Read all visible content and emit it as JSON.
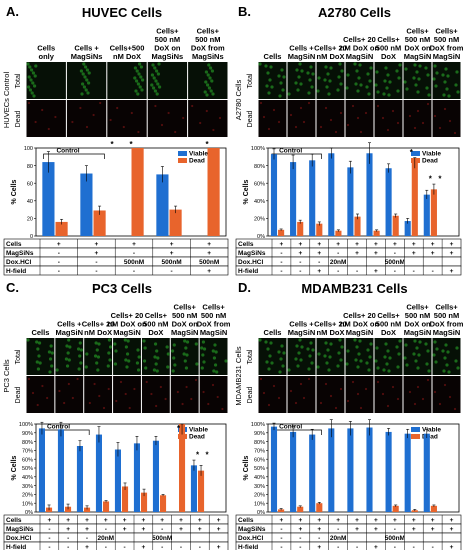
{
  "colors": {
    "viable": "#1f6fd1",
    "dead": "#e8642c",
    "micro_live": "#1f7a1f",
    "micro_dead": "#5a1010"
  },
  "panels": [
    {
      "letter": "A.",
      "title": "HUVEC Cells",
      "side_label": "HUVECs Control",
      "row_labels": [
        "Total",
        "Dead"
      ],
      "conditions": [
        "Cells only",
        "Cells + MagSiNs",
        "Cells+500 nM DoX",
        "Cells+ 500 nM DoX on MagSiNs",
        "Cells+ 500 nM DoX from MagSiNs"
      ],
      "table": {
        "rows": [
          {
            "label": "Cells",
            "cells": [
              "+",
              "+",
              "+",
              "+",
              "+"
            ]
          },
          {
            "label": "MagSiNs",
            "cells": [
              "-",
              "+",
              "-",
              "+",
              "+"
            ]
          },
          {
            "label": "Dox.HCl",
            "cells": [
              "-",
              "-",
              "500nM",
              "500nM",
              "500nM"
            ]
          },
          {
            "label": "H-field",
            "cells": [
              "-",
              "-",
              "-",
              "-",
              "+"
            ]
          }
        ]
      },
      "legend": [
        "Viable",
        "Dead"
      ],
      "control_label": "Control",
      "ylabel": "% Cells",
      "yticks": [
        "0",
        "20",
        "40",
        "60",
        "80",
        "100"
      ]
    },
    {
      "letter": "B.",
      "title": "A2780 Cells",
      "side_label": "A2780 Cells",
      "row_labels": [
        "Total",
        "Dead"
      ],
      "conditions": [
        "Cells",
        "Cells + MagSiN",
        "Cells+ 20 nM DoX",
        "Cells+ 20 nM DoX on MagSiN",
        "Cells+ 500 nM DoX",
        "Cells+ 500 nM DoX on MagSiN",
        "Cells+ 500 nM DoX from MagSiN"
      ],
      "table": {
        "rows": [
          {
            "label": "Cells",
            "cells": [
              "+",
              "+",
              "+",
              "+",
              "+",
              "+",
              "+",
              "+",
              "+",
              "+"
            ]
          },
          {
            "label": "MagSiNs",
            "cells": [
              "-",
              "+",
              "+",
              "-",
              "+",
              "+",
              "-",
              "+",
              "+",
              "+"
            ]
          },
          {
            "label": "Dox.HCl",
            "cells": [
              "-",
              "-",
              "-",
              "20nM",
              "",
              "",
              "500nM",
              "",
              "",
              ""
            ]
          },
          {
            "label": "H-field",
            "cells": [
              "-",
              "-",
              "+",
              "-",
              "-",
              "+",
              "-",
              "-",
              "-",
              "+"
            ]
          }
        ]
      },
      "legend": [
        "Viable",
        "Dead"
      ],
      "control_label": "Control",
      "ylabel": "% Cells",
      "yticks": [
        "0%",
        "20%",
        "40%",
        "60%",
        "80%",
        "100%"
      ]
    },
    {
      "letter": "C.",
      "title": "PC3 Cells",
      "side_label": "PC3 Cells",
      "row_labels": [
        "Total",
        "Dead"
      ],
      "conditions": [
        "Cells",
        "Cells + MagSiN",
        "Cells+ 20 nM DoX",
        "Cells+ 20 nM DoX on MagSiN",
        "Cells+ 500 nM DoX",
        "Cells+ 500 nM DoX on MagSiN",
        "Cells+ 500 nM DoX from MagSiN"
      ],
      "table": {
        "rows": [
          {
            "label": "Cells",
            "cells": [
              "+",
              "+",
              "+",
              "+",
              "+",
              "+",
              "+",
              "+",
              "+",
              "+"
            ]
          },
          {
            "label": "MagSiNs",
            "cells": [
              "-",
              "+",
              "+",
              "-",
              "+",
              "+",
              "-",
              "+",
              "+",
              "+"
            ]
          },
          {
            "label": "Dox.HCl",
            "cells": [
              "-",
              "-",
              "-",
              "20nM",
              "",
              "",
              "500nM",
              "",
              "",
              ""
            ]
          },
          {
            "label": "H-field",
            "cells": [
              "-",
              "-",
              "+",
              "-",
              "-",
              "+",
              "-",
              "-",
              "-",
              "+"
            ]
          }
        ]
      },
      "legend": [
        "Viable",
        "Dead"
      ],
      "control_label": "Control",
      "ylabel": "% Cells",
      "yticks": [
        "0%",
        "10%",
        "20%",
        "30%",
        "40%",
        "50%",
        "60%",
        "70%",
        "80%",
        "90%",
        "100%"
      ]
    },
    {
      "letter": "D.",
      "title": "MDAMB231 Cells",
      "side_label": "MDAMB231 Cells",
      "row_labels": [
        "Total",
        "Dead"
      ],
      "conditions": [
        "Cells",
        "Cells + MagSiN",
        "Cells+ 20 nM DoX",
        "Cells+ 20 nM DoX on MagSiN",
        "Cells+ 500 nM DoX",
        "Cells+ 500 nM DoX on MagSiN",
        "Cells+ 500 nM DoX from MagSiN"
      ],
      "table": {
        "rows": [
          {
            "label": "Cells",
            "cells": [
              "+",
              "+",
              "+",
              "+",
              "+",
              "+",
              "+",
              "+",
              "+",
              "+"
            ]
          },
          {
            "label": "MagSiNs",
            "cells": [
              "-",
              "+",
              "+",
              "-",
              "+",
              "+",
              "-",
              "+",
              "+",
              "+"
            ]
          },
          {
            "label": "Dox.HCl",
            "cells": [
              "-",
              "-",
              "-",
              "20nM",
              "",
              "",
              "500nM",
              "",
              "",
              ""
            ]
          },
          {
            "label": "H-field",
            "cells": [
              "-",
              "-",
              "+",
              "-",
              "-",
              "+",
              "-",
              "-",
              "-",
              "+"
            ]
          }
        ]
      },
      "legend": [
        "Viable",
        "Dead"
      ],
      "control_label": "Control",
      "ylabel": "% Cells",
      "yticks": [
        "0%",
        "10%",
        "20%",
        "30%",
        "40%",
        "50%",
        "60%",
        "70%",
        "80%",
        "90%",
        "100%"
      ]
    }
  ],
  "chart_data": [
    {
      "type": "bar",
      "title": "HUVEC Cells",
      "ylabel": "% Cells",
      "ylim": [
        0,
        100
      ],
      "categories": [
        "1",
        "2",
        "3",
        "4",
        "5"
      ],
      "series": [
        {
          "name": "Viable",
          "values": [
            84,
            71,
            0,
            70,
            0
          ]
        },
        {
          "name": "Dead",
          "values": [
            16,
            29,
            100,
            30,
            100
          ]
        }
      ],
      "errors": [
        [
          12,
          9,
          0,
          9,
          0
        ],
        [
          3,
          5,
          0,
          4,
          0
        ]
      ],
      "annotations": [
        "*",
        "*",
        "*"
      ],
      "legend": "top-right",
      "grid": false
    },
    {
      "type": "bar",
      "title": "A2780 Cells",
      "ylabel": "% Cells",
      "ylim": [
        0,
        100
      ],
      "categories": [
        "1",
        "2",
        "3",
        "4",
        "5",
        "6",
        "7",
        "8",
        "9",
        "10"
      ],
      "series": [
        {
          "name": "Viable",
          "values": [
            93,
            84,
            86,
            94,
            78,
            94,
            77,
            17,
            47,
            0
          ]
        },
        {
          "name": "Dead",
          "values": [
            7,
            16,
            14,
            6,
            22,
            6,
            23,
            83,
            53,
            0
          ]
        }
      ],
      "errors": [
        [
          6,
          8,
          7,
          6,
          7,
          12,
          5,
          3,
          5,
          0
        ],
        [
          1,
          2,
          2,
          1,
          3,
          1,
          2,
          6,
          6,
          0
        ]
      ],
      "annotations": [
        "*",
        "*",
        "*"
      ],
      "legend": "top-right",
      "grid": false
    },
    {
      "type": "bar",
      "title": "PC3 Cells",
      "ylabel": "% Cells",
      "ylim": [
        0,
        100
      ],
      "categories": [
        "1",
        "2",
        "3",
        "4",
        "5",
        "6",
        "7",
        "8",
        "9",
        "10"
      ],
      "series": [
        {
          "name": "Viable",
          "values": [
            95,
            94,
            75,
            88,
            71,
            78,
            81,
            0,
            53,
            0
          ]
        },
        {
          "name": "Dead",
          "values": [
            5,
            6,
            5,
            12,
            29,
            22,
            19,
            100,
            47,
            0
          ]
        }
      ],
      "errors": [
        [
          7,
          8,
          6,
          9,
          8,
          8,
          5,
          0,
          6,
          0
        ],
        [
          3,
          3,
          2,
          1,
          4,
          4,
          1,
          12,
          6,
          0
        ]
      ],
      "annotations": [
        "*",
        "*",
        "*"
      ],
      "legend": "top-right",
      "grid": false
    },
    {
      "type": "bar",
      "title": "MDAMB231 Cells",
      "ylabel": "% Cells",
      "ylim": [
        0,
        100
      ],
      "categories": [
        "1",
        "2",
        "3",
        "4",
        "5",
        "6",
        "7",
        "8",
        "9",
        "10"
      ],
      "series": [
        {
          "name": "Viable",
          "values": [
            97,
            91,
            88,
            95,
            95,
            96,
            91,
            89,
            89,
            0
          ]
        },
        {
          "name": "Dead",
          "values": [
            3,
            6,
            10,
            0,
            0,
            0,
            7,
            2,
            7,
            0
          ]
        }
      ],
      "errors": [
        [
          4,
          6,
          6,
          10,
          8,
          9,
          4,
          5,
          5,
          0
        ],
        [
          1,
          1,
          1,
          0,
          0,
          0,
          1,
          1,
          1,
          0
        ]
      ],
      "annotations": [],
      "legend": "top-right",
      "grid": false
    }
  ]
}
